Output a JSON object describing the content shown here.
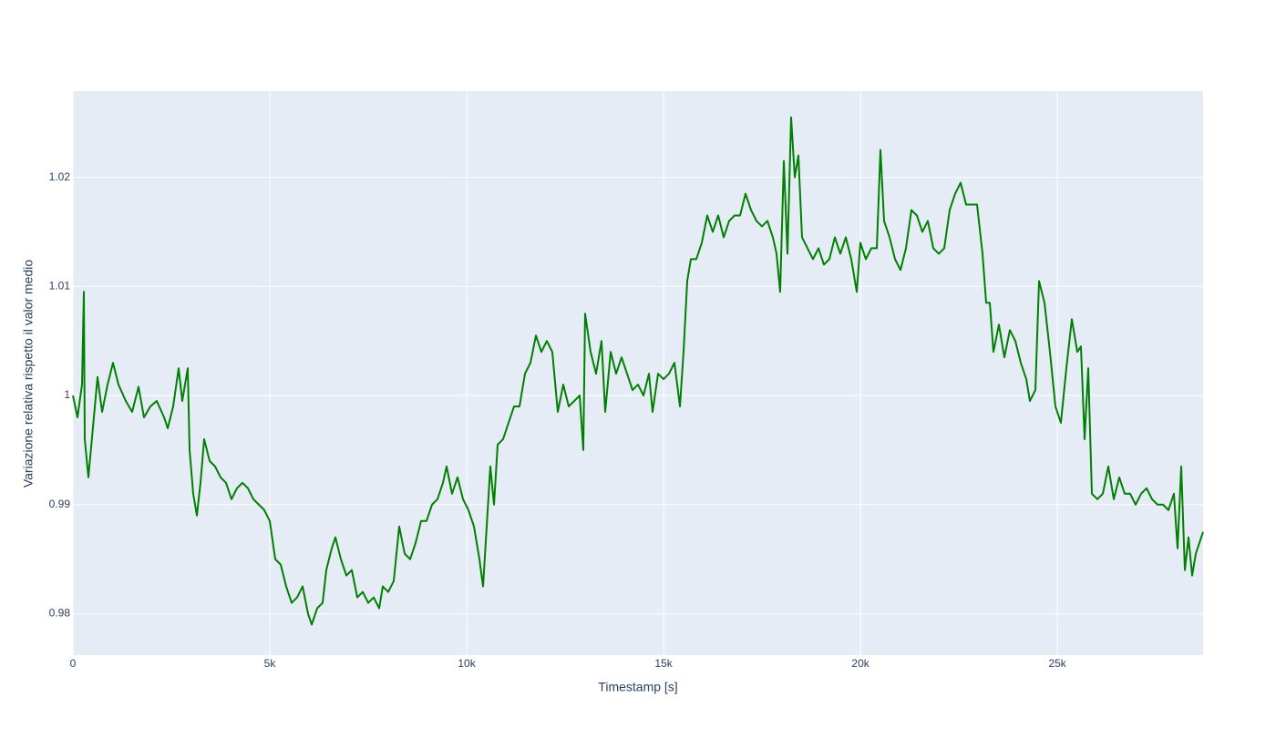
{
  "chart_data": {
    "type": "line",
    "x_label": "Timestamp [s]",
    "y_label": "Variazione relativa rispetto il valor medio",
    "xlim": [
      0,
      28700
    ],
    "ylim": [
      0.9762,
      1.0279
    ],
    "xticks": [
      0,
      {
        "value": 5000,
        "label": "5k"
      },
      {
        "value": 10000,
        "label": "10k"
      },
      {
        "value": 15000,
        "label": "15k"
      },
      {
        "value": 20000,
        "label": "20k"
      },
      {
        "value": 25000,
        "label": "25k"
      }
    ],
    "yticks": [
      0.98,
      0.99,
      1,
      1.01,
      1.02
    ],
    "grid": true,
    "background": "#e5ecf6",
    "x": [
      0,
      116,
      231,
      278,
      301,
      393,
      532,
      625,
      741,
      880,
      1018,
      1157,
      1342,
      1504,
      1666,
      1805,
      1967,
      2129,
      2315,
      2407,
      2546,
      2685,
      2777,
      2916,
      2963,
      3055,
      3148,
      3240,
      3333,
      3472,
      3611,
      3749,
      3888,
      4027,
      4166,
      4305,
      4444,
      4583,
      4722,
      4860,
      4999,
      5138,
      5277,
      5416,
      5555,
      5694,
      5833,
      5971,
      6064,
      6203,
      6342,
      6434,
      6573,
      6666,
      6805,
      6944,
      7082,
      7221,
      7360,
      7499,
      7638,
      7777,
      7869,
      8008,
      8147,
      8286,
      8425,
      8564,
      8703,
      8841,
      8980,
      9119,
      9258,
      9397,
      9489,
      9628,
      9767,
      9906,
      10045,
      10184,
      10323,
      10415,
      10508,
      10600,
      10693,
      10786,
      10924,
      11063,
      11202,
      11341,
      11480,
      11619,
      11758,
      11896,
      12035,
      12174,
      12313,
      12452,
      12591,
      12730,
      12869,
      12961,
      13007,
      13146,
      13285,
      13424,
      13517,
      13656,
      13794,
      13933,
      14072,
      14211,
      14350,
      14489,
      14628,
      14720,
      14859,
      14998,
      15137,
      15276,
      15415,
      15507,
      15600,
      15692,
      15831,
      15970,
      16109,
      16248,
      16387,
      16526,
      16664,
      16803,
      16942,
      17081,
      17220,
      17359,
      17498,
      17636,
      17775,
      17868,
      17960,
      18053,
      18146,
      18238,
      18331,
      18423,
      18516,
      18655,
      18794,
      18933,
      19071,
      19210,
      19349,
      19488,
      19627,
      19766,
      19905,
      19997,
      20136,
      20275,
      20414,
      20507,
      20599,
      20738,
      20877,
      21016,
      21155,
      21293,
      21432,
      21571,
      21710,
      21849,
      21988,
      22127,
      22265,
      22404,
      22543,
      22682,
      22821,
      22960,
      23099,
      23191,
      23284,
      23376,
      23515,
      23654,
      23793,
      23932,
      24071,
      24210,
      24302,
      24441,
      24534,
      24673,
      24811,
      24950,
      25089,
      25228,
      25367,
      25506,
      25598,
      25691,
      25784,
      25876,
      26015,
      26154,
      26293,
      26432,
      26571,
      26709,
      26848,
      26987,
      27126,
      27265,
      27404,
      27543,
      27682,
      27821,
      27959,
      28052,
      28145,
      28237,
      28330,
      28422,
      28515,
      28607,
      28700
    ],
    "series": [
      {
        "color": "#008000",
        "values": [
          1.0,
          0.998,
          1.001,
          1.0095,
          0.996,
          0.9925,
          0.998,
          1.0017,
          0.9985,
          1.001,
          1.003,
          1.001,
          0.9995,
          0.9985,
          1.0008,
          0.998,
          0.999,
          0.9995,
          0.998,
          0.997,
          0.999,
          1.0025,
          0.9995,
          1.0025,
          0.995,
          0.991,
          0.989,
          0.992,
          0.996,
          0.994,
          0.9935,
          0.9925,
          0.992,
          0.9905,
          0.9915,
          0.992,
          0.9915,
          0.9905,
          0.99,
          0.9895,
          0.9885,
          0.985,
          0.9845,
          0.9825,
          0.981,
          0.9815,
          0.9825,
          0.98,
          0.979,
          0.9805,
          0.981,
          0.984,
          0.986,
          0.987,
          0.985,
          0.9835,
          0.984,
          0.9815,
          0.982,
          0.981,
          0.9815,
          0.9805,
          0.9825,
          0.982,
          0.983,
          0.988,
          0.9855,
          0.985,
          0.9865,
          0.9885,
          0.9885,
          0.99,
          0.9905,
          0.992,
          0.9935,
          0.991,
          0.9925,
          0.9905,
          0.9895,
          0.988,
          0.985,
          0.9825,
          0.988,
          0.9935,
          0.99,
          0.9955,
          0.996,
          0.9975,
          0.999,
          0.999,
          1.002,
          1.003,
          1.0055,
          1.004,
          1.005,
          1.004,
          0.9985,
          1.001,
          0.999,
          0.9995,
          1.0,
          0.995,
          1.0075,
          1.004,
          1.002,
          1.005,
          0.9985,
          1.004,
          1.002,
          1.0035,
          1.002,
          1.0005,
          1.001,
          1.0,
          1.002,
          0.9985,
          1.002,
          1.0015,
          1.002,
          1.003,
          0.999,
          1.004,
          1.0105,
          1.0125,
          1.0125,
          1.014,
          1.0165,
          1.015,
          1.0165,
          1.0145,
          1.016,
          1.0165,
          1.0165,
          1.0185,
          1.017,
          1.016,
          1.0155,
          1.016,
          1.0145,
          1.013,
          1.0095,
          1.0215,
          1.013,
          1.0255,
          1.02,
          1.022,
          1.0145,
          1.0135,
          1.0125,
          1.0135,
          1.012,
          1.0125,
          1.0145,
          1.013,
          1.0145,
          1.0125,
          1.0095,
          1.014,
          1.0125,
          1.0135,
          1.0135,
          1.0225,
          1.016,
          1.0145,
          1.0125,
          1.0115,
          1.0135,
          1.017,
          1.0165,
          1.015,
          1.016,
          1.0135,
          1.013,
          1.0135,
          1.017,
          1.0185,
          1.0195,
          1.0175,
          1.0175,
          1.0175,
          1.013,
          1.0085,
          1.0085,
          1.004,
          1.0065,
          1.0035,
          1.006,
          1.005,
          1.003,
          1.0015,
          0.9995,
          1.0005,
          1.0105,
          1.0085,
          1.004,
          0.999,
          0.9975,
          1.0025,
          1.007,
          1.004,
          1.0045,
          0.996,
          1.0025,
          0.991,
          0.9905,
          0.991,
          0.9935,
          0.9905,
          0.9925,
          0.991,
          0.991,
          0.99,
          0.991,
          0.9915,
          0.9905,
          0.99,
          0.99,
          0.9895,
          0.991,
          0.986,
          0.9935,
          0.984,
          0.987,
          0.9835,
          0.9855,
          0.9865,
          0.9875
        ]
      }
    ]
  }
}
